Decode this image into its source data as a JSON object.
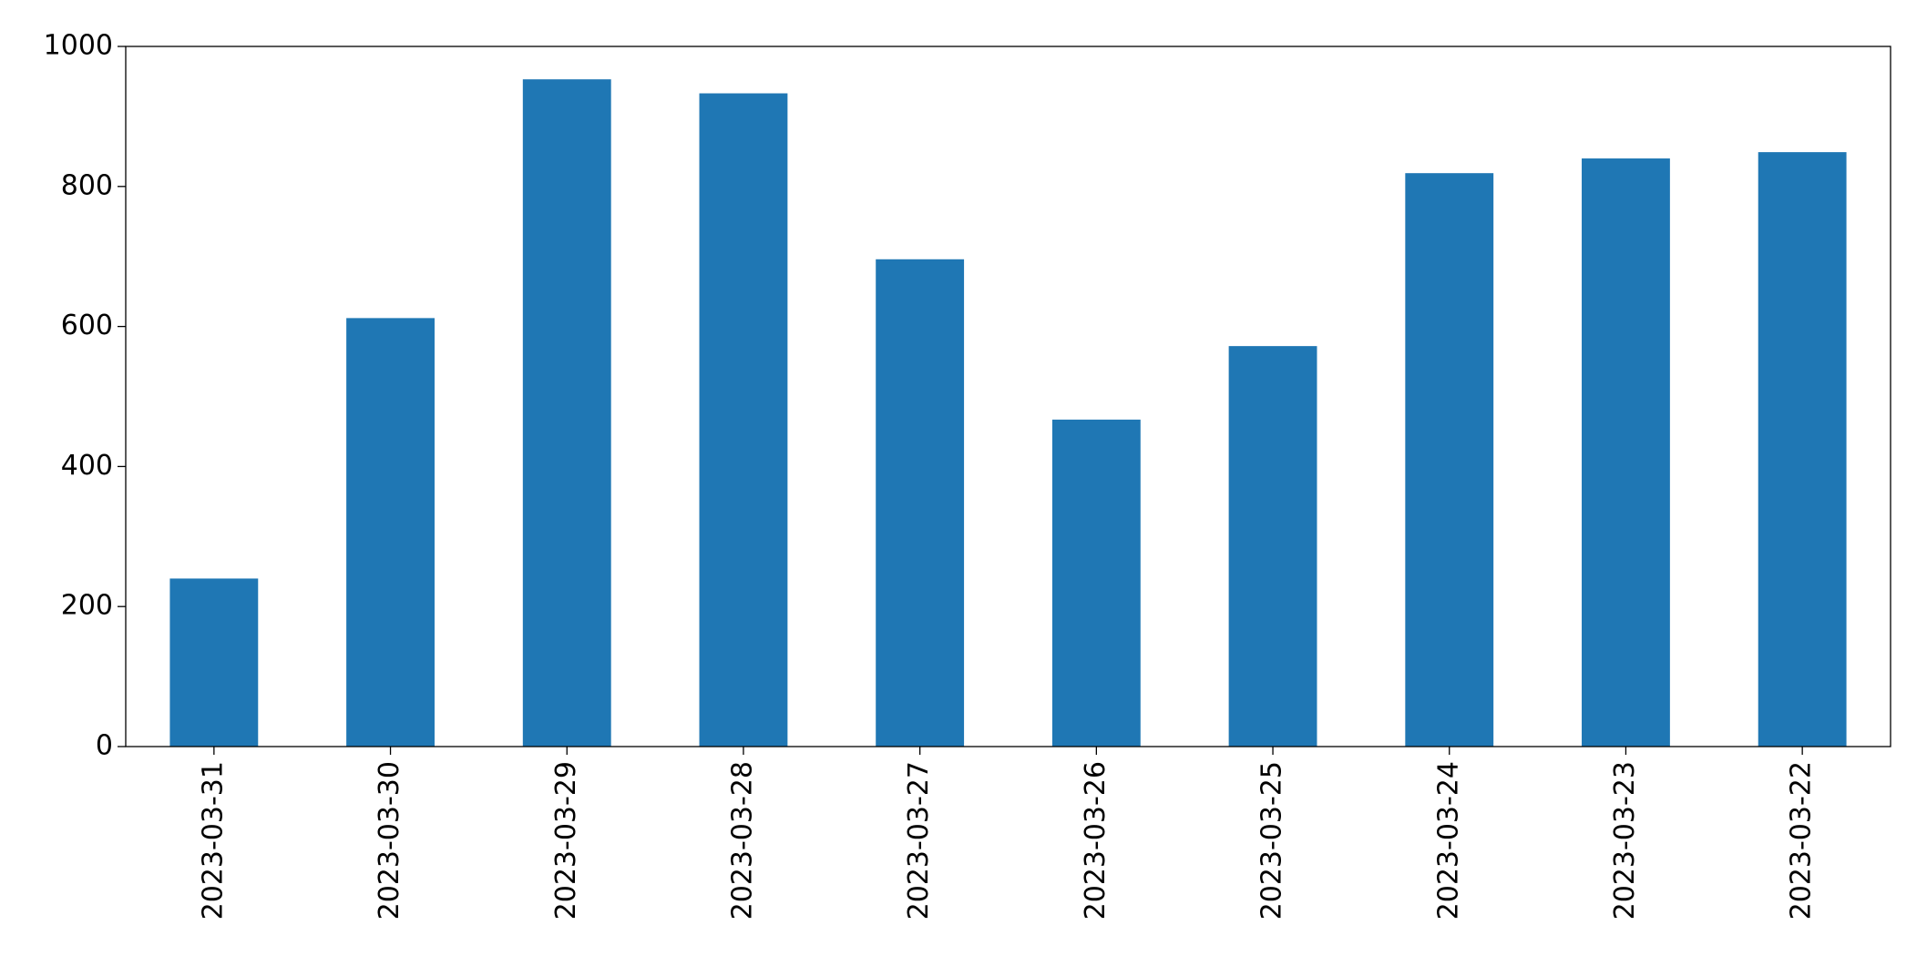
{
  "chart_data": {
    "type": "bar",
    "categories": [
      "2023-03-31",
      "2023-03-30",
      "2023-03-29",
      "2023-03-28",
      "2023-03-27",
      "2023-03-26",
      "2023-03-25",
      "2023-03-24",
      "2023-03-23",
      "2023-03-22"
    ],
    "values": [
      240,
      612,
      953,
      933,
      696,
      467,
      572,
      819,
      840,
      849
    ],
    "color": "#1f77b4",
    "ylim": [
      0,
      1000
    ],
    "yticks": [
      0,
      200,
      400,
      600,
      800,
      1000
    ],
    "grid": false
  }
}
